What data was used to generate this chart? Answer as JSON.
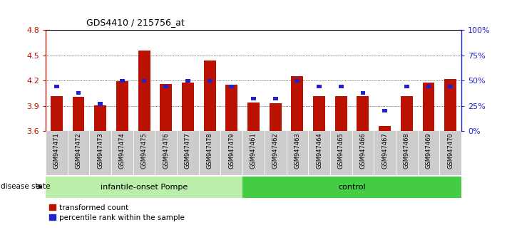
{
  "title": "GDS4410 / 215756_at",
  "samples": [
    "GSM947471",
    "GSM947472",
    "GSM947473",
    "GSM947474",
    "GSM947475",
    "GSM947476",
    "GSM947477",
    "GSM947478",
    "GSM947479",
    "GSM947461",
    "GSM947462",
    "GSM947463",
    "GSM947464",
    "GSM947465",
    "GSM947466",
    "GSM947467",
    "GSM947468",
    "GSM947469",
    "GSM947470"
  ],
  "red_values": [
    4.02,
    4.01,
    3.91,
    4.19,
    4.56,
    4.16,
    4.18,
    4.44,
    4.15,
    3.94,
    3.93,
    4.25,
    4.02,
    4.02,
    4.02,
    3.66,
    4.02,
    4.18,
    4.22
  ],
  "blue_pct": [
    44,
    38,
    27,
    50,
    50,
    44,
    50,
    50,
    44,
    32,
    32,
    50,
    44,
    44,
    38,
    20,
    44,
    44,
    44
  ],
  "ylim_left": [
    3.6,
    4.8
  ],
  "ylim_right": [
    0,
    100
  ],
  "yticks_left": [
    3.6,
    3.9,
    4.2,
    4.5,
    4.8
  ],
  "yticks_right": [
    0,
    25,
    50,
    75,
    100
  ],
  "ytick_labels_right": [
    "0%",
    "25%",
    "50%",
    "75%",
    "100%"
  ],
  "group1_label": "infantile-onset Pompe",
  "group2_label": "control",
  "group1_count": 9,
  "group2_count": 10,
  "disease_state_label": "disease state",
  "legend_red": "transformed count",
  "legend_blue": "percentile rank within the sample",
  "bar_color_red": "#bb1100",
  "bar_color_blue": "#2222cc",
  "group1_bg": "#bbeeaa",
  "group2_bg": "#44cc44",
  "xticklabel_bg": "#cccccc",
  "base_value": 3.6
}
